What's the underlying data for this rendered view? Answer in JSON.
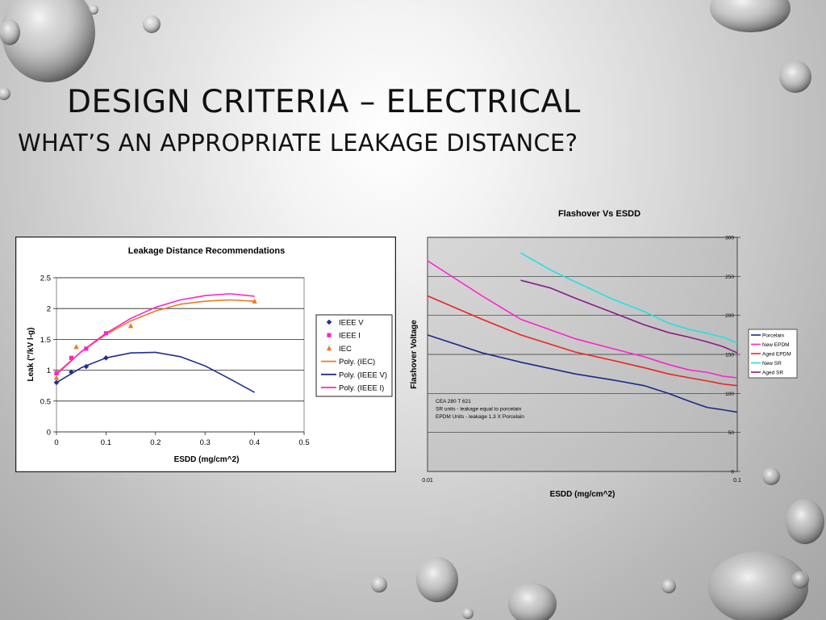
{
  "slide": {
    "title_line1": "DESIGN CRITERIA – ELECTRICAL",
    "title_line2": "WHAT’S AN APPROPRIATE LEAKAGE DISTANCE?"
  },
  "chart_data": [
    {
      "type": "scatter",
      "title": "Leakage Distance Recommendations",
      "xlabel": "ESDD (mg/cm^2)",
      "ylabel": "Leak (\"/kV l-g)",
      "xlim": [
        0,
        0.5
      ],
      "ylim": [
        0,
        2.5
      ],
      "xticks": [
        "0",
        "0.1",
        "0.2",
        "0.3",
        "0.4",
        "0.5"
      ],
      "yticks": [
        "0",
        "0.5",
        "1",
        "1.5",
        "2",
        "2.5"
      ],
      "grid": "horizontal",
      "legend_position": "right",
      "series": [
        {
          "name": "IEEE V",
          "kind": "points",
          "marker": "diamond",
          "color": "#1f2f8f",
          "x": [
            0,
            0.03,
            0.06,
            0.1
          ],
          "y": [
            0.8,
            0.97,
            1.06,
            1.2
          ]
        },
        {
          "name": "IEEE I",
          "kind": "points",
          "marker": "square",
          "color": "#ff22cc",
          "x": [
            0,
            0.03,
            0.06,
            0.1
          ],
          "y": [
            0.95,
            1.2,
            1.35,
            1.6
          ]
        },
        {
          "name": "IEC",
          "kind": "points",
          "marker": "triangle",
          "color": "#f07820",
          "x": [
            0,
            0.04,
            0.15,
            0.4
          ],
          "y": [
            0.88,
            1.38,
            1.72,
            2.12
          ]
        },
        {
          "name": "Poly. (IEC)",
          "kind": "curve",
          "color": "#f07820",
          "x": [
            0,
            0.05,
            0.1,
            0.15,
            0.2,
            0.25,
            0.3,
            0.35,
            0.4
          ],
          "y": [
            0.95,
            1.3,
            1.58,
            1.8,
            1.96,
            2.07,
            2.12,
            2.14,
            2.12
          ]
        },
        {
          "name": "Poly. (IEEE V)",
          "kind": "curve",
          "color": "#1f2f8f",
          "x": [
            0,
            0.05,
            0.1,
            0.15,
            0.2,
            0.25,
            0.3,
            0.35,
            0.4
          ],
          "y": [
            0.8,
            1.04,
            1.2,
            1.28,
            1.29,
            1.22,
            1.07,
            0.86,
            0.64
          ]
        },
        {
          "name": "Poly. (IEEE I)",
          "kind": "curve",
          "color": "#ff22cc",
          "x": [
            0,
            0.05,
            0.1,
            0.15,
            0.2,
            0.25,
            0.3,
            0.35,
            0.4
          ],
          "y": [
            0.93,
            1.3,
            1.6,
            1.84,
            2.02,
            2.14,
            2.21,
            2.24,
            2.2
          ]
        }
      ]
    },
    {
      "type": "line",
      "title": "Flashover Vs ESDD",
      "xlabel": "ESDD (mg/cm^2)",
      "ylabel": "Flashover Voltage",
      "xscale": "log",
      "xlim": [
        0.01,
        0.1
      ],
      "ylim": [
        0,
        300
      ],
      "xticks": [
        "0.01",
        "0.1"
      ],
      "yticks": [
        "0",
        "50",
        "100",
        "150",
        "200",
        "250",
        "300"
      ],
      "grid": "horizontal",
      "legend_position": "right",
      "annotation": [
        "CEA 280 T 621",
        "SR units - leakage equal to porcelain",
        "EPDM Units - leakage 1.3 X Porcelain"
      ],
      "series": [
        {
          "name": "Porcelain",
          "color": "#1a2a8a",
          "x": [
            0.01,
            0.015,
            0.02,
            0.03,
            0.04,
            0.05,
            0.06,
            0.07,
            0.08,
            0.09,
            0.1
          ],
          "y": [
            175,
            152,
            140,
            125,
            117,
            110,
            100,
            90,
            82,
            79,
            76
          ]
        },
        {
          "name": "New EPDM",
          "color": "#ff22cc",
          "x": [
            0.01,
            0.015,
            0.02,
            0.03,
            0.04,
            0.05,
            0.06,
            0.07,
            0.08,
            0.09,
            0.1
          ],
          "y": [
            270,
            225,
            195,
            170,
            157,
            147,
            137,
            130,
            127,
            122,
            120
          ]
        },
        {
          "name": "Aged EPDM",
          "color": "#ee2222",
          "x": [
            0.01,
            0.015,
            0.02,
            0.03,
            0.04,
            0.05,
            0.06,
            0.07,
            0.08,
            0.09,
            0.1
          ],
          "y": [
            225,
            195,
            175,
            153,
            142,
            133,
            125,
            120,
            116,
            112,
            110
          ]
        },
        {
          "name": "New SR",
          "color": "#22e0e8",
          "x": [
            0.02,
            0.025,
            0.03,
            0.04,
            0.05,
            0.06,
            0.07,
            0.08,
            0.09,
            0.1
          ],
          "y": [
            280,
            258,
            243,
            220,
            205,
            190,
            182,
            177,
            172,
            165
          ]
        },
        {
          "name": "Aged SR",
          "color": "#8a1a8a",
          "x": [
            0.02,
            0.025,
            0.03,
            0.04,
            0.05,
            0.06,
            0.07,
            0.08,
            0.09,
            0.1
          ],
          "y": [
            245,
            235,
            222,
            203,
            188,
            178,
            172,
            166,
            160,
            152
          ]
        }
      ]
    }
  ]
}
